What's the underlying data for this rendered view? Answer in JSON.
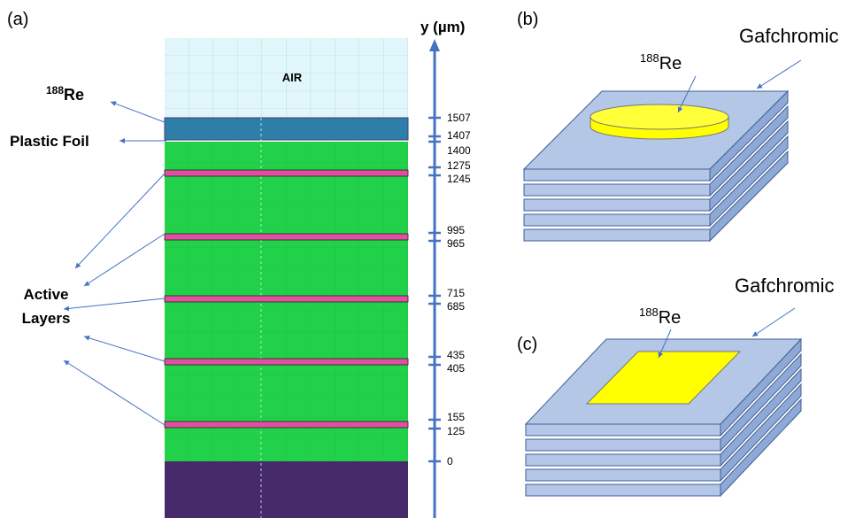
{
  "panel_a": {
    "label": "(a)",
    "axis_label": "y (µm)",
    "air": "AIR",
    "re_label": {
      "sup": "188",
      "text": "Re"
    },
    "plastic_foil": "Plastic Foil",
    "active_layers": [
      "Active",
      "Layers"
    ],
    "ticks": [
      "1507",
      "1407",
      "1400",
      "1275",
      "1245",
      "995",
      "965",
      "715",
      "685",
      "435",
      "405",
      "155",
      "125",
      "0"
    ]
  },
  "panel_b": {
    "label": "(b)",
    "gafchromic": "Gafchromic",
    "re_label": {
      "sup": "188",
      "text": "Re"
    }
  },
  "panel_c": {
    "label": "(c)",
    "gafchromic": "Gafchromic",
    "re_label": {
      "sup": "188",
      "text": "Re"
    }
  }
}
